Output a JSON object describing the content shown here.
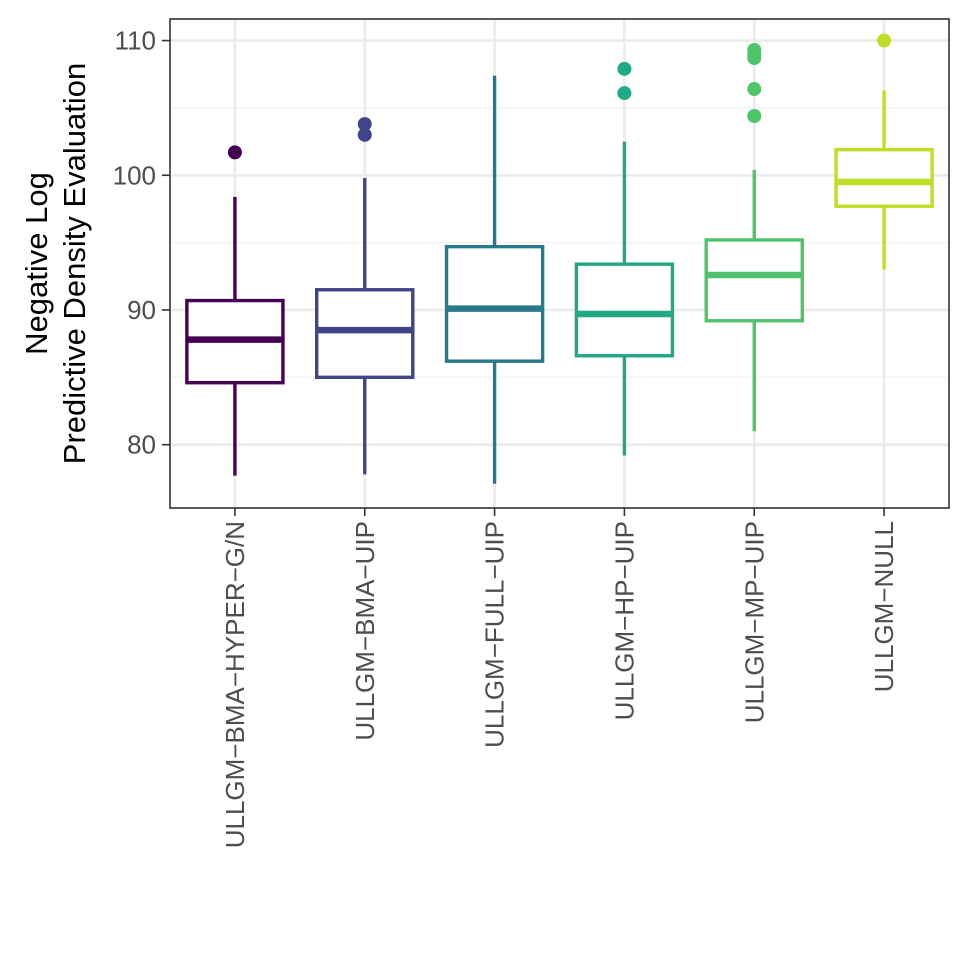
{
  "chart_data": {
    "type": "boxplot",
    "title": "",
    "xlabel": "",
    "ylabel_lines": [
      "Negative Log",
      "Predictive Density Evaluation"
    ],
    "ylim": [
      75.3,
      111.6
    ],
    "yticks": [
      80,
      90,
      100,
      110
    ],
    "yminor_ticks": [
      85,
      95,
      105
    ],
    "grid": true,
    "legend": "none",
    "categories": [
      "ULLGM−BMA−HYPER−G/N",
      "ULLGM−BMA−UIP",
      "ULLGM−FULL−UIP",
      "ULLGM−HP−UIP",
      "ULLGM−MP−UIP",
      "ULLGM−NULL"
    ],
    "colors": [
      "#440154",
      "#414487",
      "#2a788e",
      "#22a884",
      "#4fc46a",
      "#bddf26"
    ],
    "boxes": [
      {
        "whisker_low": 77.7,
        "q1": 84.6,
        "median": 87.8,
        "q3": 90.7,
        "whisker_high": 98.4,
        "outliers": [
          101.7
        ]
      },
      {
        "whisker_low": 77.8,
        "q1": 85.0,
        "median": 88.5,
        "q3": 91.5,
        "whisker_high": 99.8,
        "outliers": [
          103.0,
          103.8
        ]
      },
      {
        "whisker_low": 77.1,
        "q1": 86.2,
        "median": 90.1,
        "q3": 94.7,
        "whisker_high": 107.4,
        "outliers": []
      },
      {
        "whisker_low": 79.2,
        "q1": 86.6,
        "median": 89.7,
        "q3": 93.4,
        "whisker_high": 102.5,
        "outliers": [
          106.1,
          107.9
        ]
      },
      {
        "whisker_low": 81.0,
        "q1": 89.2,
        "median": 92.6,
        "q3": 95.2,
        "whisker_high": 100.4,
        "outliers": [
          104.4,
          106.4,
          108.7,
          108.9,
          109.3
        ]
      },
      {
        "whisker_low": 93.0,
        "q1": 97.7,
        "median": 99.5,
        "q3": 101.9,
        "whisker_high": 106.3,
        "outliers": [
          110.0
        ]
      }
    ]
  }
}
